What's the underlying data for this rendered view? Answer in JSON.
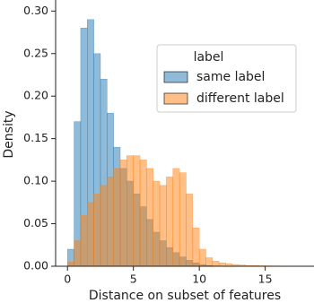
{
  "chart_data": {
    "type": "histogram",
    "xlabel": "Distance on subset of features",
    "ylabel": "Density",
    "bins": [
      0,
      0.5,
      1,
      1.5,
      2,
      2.5,
      3,
      3.5,
      4,
      4.5,
      5,
      5.5,
      6,
      6.5,
      7,
      7.5,
      8,
      8.5,
      9,
      9.5,
      10,
      10.5,
      11,
      11.5,
      12,
      12.5,
      13,
      13.5,
      14,
      14.5,
      15,
      15.5,
      16,
      16.5,
      17,
      17.5,
      18
    ],
    "series": [
      {
        "name": "same label",
        "color": "#1f77b4",
        "values": [
          0.02,
          0.17,
          0.28,
          0.29,
          0.25,
          0.22,
          0.18,
          0.14,
          0.115,
          0.1,
          0.085,
          0.07,
          0.055,
          0.04,
          0.03,
          0.022,
          0.016,
          0.011,
          0.007,
          0.004,
          0.002,
          0.001,
          0.0005,
          0,
          0,
          0,
          0,
          0,
          0,
          0,
          0,
          0,
          0,
          0,
          0,
          0
        ]
      },
      {
        "name": "different label",
        "color": "#ff7f0e",
        "values": [
          0.005,
          0.03,
          0.06,
          0.075,
          0.085,
          0.095,
          0.105,
          0.115,
          0.125,
          0.13,
          0.13,
          0.125,
          0.115,
          0.1,
          0.095,
          0.105,
          0.115,
          0.11,
          0.085,
          0.045,
          0.02,
          0.01,
          0.006,
          0.004,
          0.003,
          0.002,
          0.0015,
          0.001,
          0.0008,
          0.0006,
          0.0005,
          0.0004,
          0.0003,
          0.0002,
          0.0002,
          0.0001
        ]
      }
    ],
    "legend_title": "label",
    "legend": "upper right",
    "xlim": [
      -0.9,
      18.7
    ],
    "ylim": [
      0,
      0.313
    ],
    "xticks": [
      0,
      5,
      10,
      15
    ],
    "yticks": [
      {
        "value": 0,
        "label": "0.00"
      },
      {
        "value": 0.05,
        "label": "0.05"
      },
      {
        "value": 0.1,
        "label": "0.10"
      },
      {
        "value": 0.15,
        "label": "0.15"
      },
      {
        "value": 0.2,
        "label": "0.20"
      },
      {
        "value": 0.25,
        "label": "0.25"
      },
      {
        "value": 0.3,
        "label": "0.30"
      }
    ]
  }
}
